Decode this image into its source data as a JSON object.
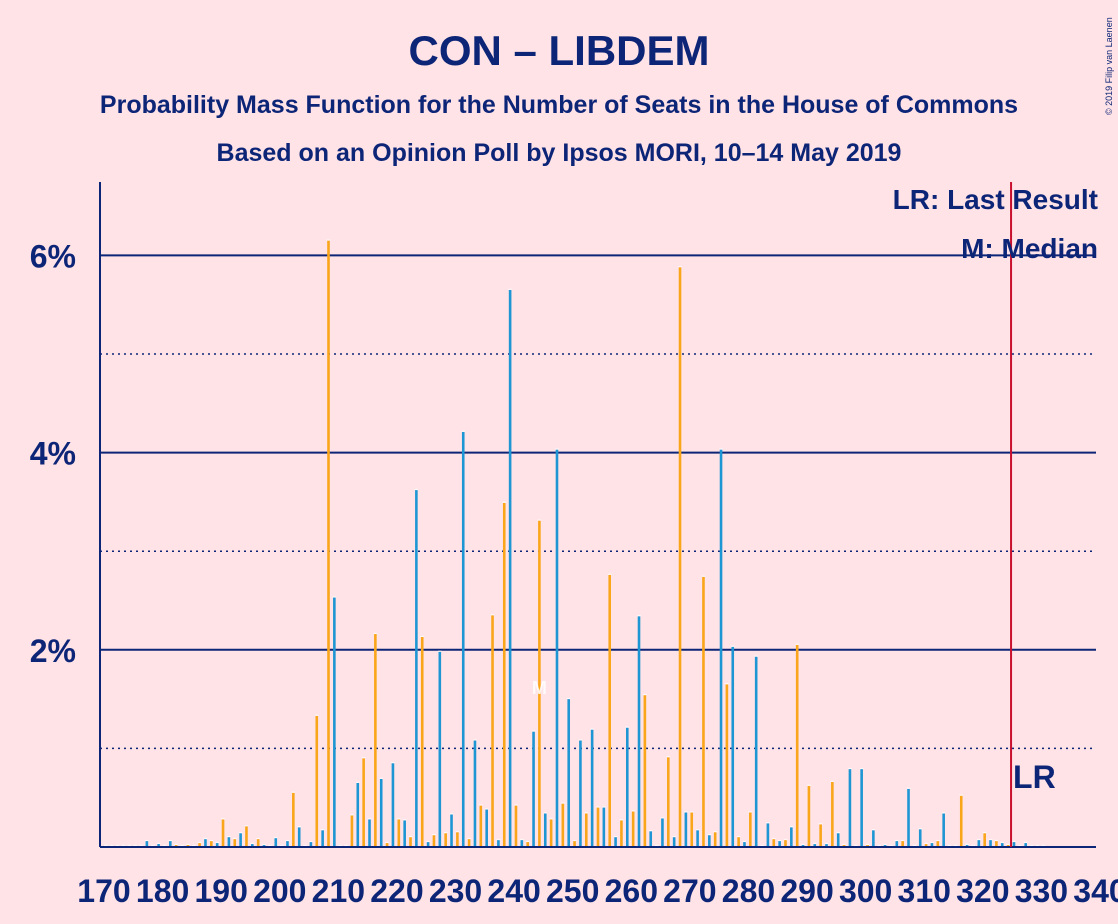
{
  "title": "CON – LIBDEM",
  "subtitle1": "Probability Mass Function for the Number of Seats in the House of Commons",
  "subtitle2": "Based on an Opinion Poll by Ipsos MORI, 10–14 May 2019",
  "copyright": "© 2019 Filip van Laenen",
  "legend": {
    "last_result": "LR: Last Result",
    "median": "M: Median"
  },
  "lr_marker_label": "LR",
  "median_marker_label": "M",
  "colors": {
    "background": "#FFE3E7",
    "text": "#0D2577",
    "con": "#1F96D4",
    "libdem": "#FAA61A",
    "last_result_line": "#C8102E",
    "gridline": "#0D2577"
  },
  "chart_data": {
    "type": "bar",
    "x_range": [
      170,
      340
    ],
    "y_range": [
      0,
      6.7
    ],
    "y_unit": "%",
    "y_ticks": [
      "2%",
      "4%",
      "6%"
    ],
    "y_tick_values": [
      2,
      4,
      6
    ],
    "y_minor_gridlines": [
      1,
      3,
      5
    ],
    "x_ticks": [
      "170",
      "180",
      "190",
      "200",
      "210",
      "220",
      "230",
      "240",
      "250",
      "260",
      "270",
      "280",
      "290",
      "300",
      "310",
      "320",
      "330",
      "340"
    ],
    "x_tick_values": [
      170,
      180,
      190,
      200,
      210,
      220,
      230,
      240,
      250,
      260,
      270,
      280,
      290,
      300,
      310,
      320,
      330,
      340
    ],
    "last_result": 325.5,
    "median": 245,
    "series": [
      {
        "name": "CON",
        "x": [
          172,
          174,
          176,
          178,
          180,
          182,
          184,
          186,
          188,
          190,
          192,
          194,
          196,
          198,
          200,
          202,
          204,
          206,
          208,
          210,
          212,
          214,
          216,
          218,
          220,
          222,
          224,
          226,
          228,
          230,
          232,
          234,
          236,
          238,
          240,
          242,
          244,
          246,
          248,
          250,
          252,
          254,
          256,
          258,
          260,
          262,
          264,
          266,
          268,
          270,
          272,
          274,
          276,
          278,
          280,
          282,
          284,
          286,
          288,
          290,
          292,
          294,
          296,
          298,
          300,
          302,
          304,
          306,
          308,
          310,
          312,
          314,
          316,
          318,
          320,
          322,
          324,
          326,
          328,
          330
        ],
        "values": [
          0.01,
          0.01,
          0.01,
          0.06,
          0.03,
          0.06,
          0.01,
          0.01,
          0.08,
          0.04,
          0.1,
          0.14,
          0.03,
          0.02,
          0.09,
          0.06,
          0.2,
          0.05,
          0.17,
          2.53,
          0.01,
          0.65,
          0.28,
          0.69,
          0.85,
          0.27,
          3.62,
          0.05,
          1.98,
          0.33,
          4.21,
          1.08,
          0.38,
          0.07,
          5.65,
          0.07,
          1.17,
          0.34,
          4.03,
          1.5,
          1.08,
          1.19,
          0.4,
          0.1,
          1.21,
          2.34,
          0.16,
          0.29,
          0.1,
          0.35,
          0.17,
          0.12,
          4.03,
          2.03,
          0.05,
          1.93,
          0.24,
          0.06,
          0.2,
          0.02,
          0.03,
          0.03,
          0.14,
          0.79,
          0.79,
          0.17,
          0.02,
          0.06,
          0.59,
          0.18,
          0.04,
          0.34,
          0.01,
          0.02,
          0.07,
          0.07,
          0.04,
          0.05,
          0.04,
          0.01
        ]
      },
      {
        "name": "LIBDEM",
        "x": [
          171,
          173,
          175,
          177,
          179,
          181,
          183,
          185,
          187,
          189,
          191,
          193,
          195,
          197,
          199,
          201,
          203,
          205,
          207,
          209,
          211,
          213,
          215,
          217,
          219,
          221,
          223,
          225,
          227,
          229,
          231,
          233,
          235,
          237,
          239,
          241,
          243,
          245,
          247,
          249,
          251,
          253,
          255,
          257,
          259,
          261,
          263,
          265,
          267,
          269,
          271,
          273,
          275,
          277,
          279,
          281,
          283,
          285,
          287,
          289,
          291,
          293,
          295,
          297,
          299,
          301,
          303,
          305,
          307,
          309,
          311,
          313,
          315,
          317,
          319,
          321,
          323,
          325,
          327,
          329,
          331
        ],
        "values": [
          0.01,
          0.01,
          0.01,
          0.01,
          0.01,
          0.01,
          0.02,
          0.02,
          0.04,
          0.06,
          0.28,
          0.08,
          0.21,
          0.08,
          0.01,
          0.01,
          0.55,
          0.01,
          1.33,
          6.15,
          0.01,
          0.32,
          0.9,
          2.16,
          0.04,
          0.28,
          0.1,
          2.13,
          0.12,
          0.14,
          0.15,
          0.08,
          0.42,
          2.35,
          3.49,
          0.42,
          0.05,
          3.31,
          0.28,
          0.44,
          0.06,
          0.34,
          0.4,
          2.76,
          0.27,
          0.36,
          1.54,
          0.01,
          0.91,
          5.88,
          0.35,
          2.74,
          0.15,
          1.65,
          0.1,
          0.35,
          0.01,
          0.08,
          0.07,
          2.05,
          0.62,
          0.23,
          0.66,
          0.02,
          0.01,
          0.02,
          0.01,
          0.01,
          0.06,
          0.01,
          0.03,
          0.06,
          0.01,
          0.52,
          0.01,
          0.14,
          0.06,
          0.02,
          0.01,
          0.01,
          0.01
        ]
      }
    ]
  }
}
